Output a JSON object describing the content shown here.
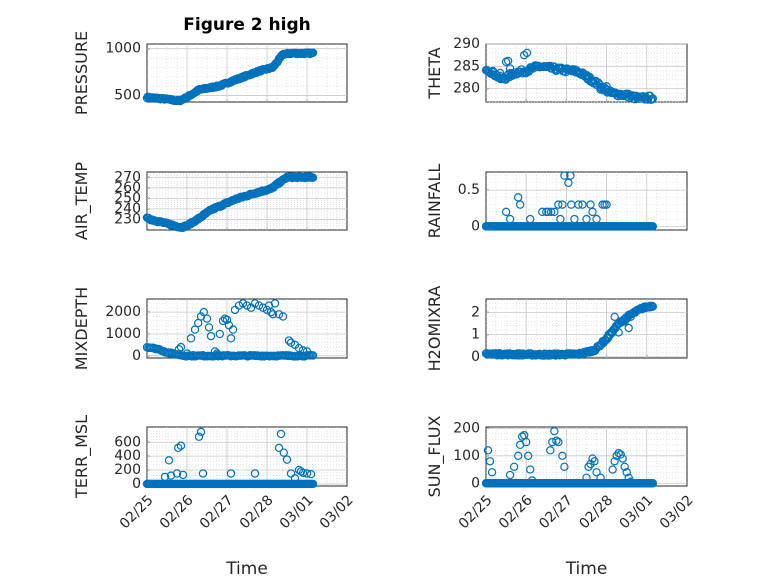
{
  "colors": {
    "marker": "#0072bd",
    "axis": "#262626",
    "grid": "#c8c8c8"
  },
  "chart_data": [
    {
      "type": "scatter",
      "title": "Figure 2 high",
      "xlabel": "",
      "ylabel": "PRESSURE",
      "xlim": [
        0,
        5
      ],
      "ylim": [
        430,
        1050
      ],
      "yticks": [
        500,
        1000
      ],
      "xticks": [
        0,
        1,
        2,
        3,
        4,
        5
      ],
      "xtick_labels": [],
      "series": [
        {
          "name": "PRESSURE",
          "type": "points",
          "x0": 0,
          "x1": 4.15,
          "n": 210,
          "keys": [
            [
              0,
              480
            ],
            [
              0.5,
              460
            ],
            [
              0.8,
              440
            ],
            [
              1.0,
              480
            ],
            [
              1.3,
              560
            ],
            [
              1.8,
              600
            ],
            [
              2.3,
              680
            ],
            [
              2.8,
              760
            ],
            [
              3.15,
              800
            ],
            [
              3.4,
              940
            ],
            [
              3.6,
              950
            ],
            [
              4.15,
              950
            ]
          ],
          "jitter": 8
        }
      ]
    },
    {
      "type": "scatter",
      "title": "",
      "xlabel": "",
      "ylabel": "THETA",
      "xlim": [
        0,
        5
      ],
      "ylim": [
        277,
        290
      ],
      "yticks": [
        280,
        285,
        290
      ],
      "xticks": [
        0,
        1,
        2,
        3,
        4,
        5
      ],
      "xtick_labels": [],
      "series": [
        {
          "name": "THETA",
          "type": "points",
          "x0": 0,
          "x1": 4.15,
          "n": 170,
          "keys": [
            [
              0,
              284.6
            ],
            [
              0.25,
              283.0
            ],
            [
              0.4,
              282.0
            ],
            [
              0.7,
              283.5
            ],
            [
              1.0,
              284.0
            ],
            [
              1.3,
              285.0
            ],
            [
              1.8,
              284.3
            ],
            [
              2.3,
              283.8
            ],
            [
              2.7,
              281.5
            ],
            [
              3.1,
              279.0
            ],
            [
              3.5,
              278.5
            ],
            [
              3.8,
              277.8
            ],
            [
              4.15,
              278.0
            ]
          ],
          "jitter": 0.5,
          "extra": [
            [
              0.35,
              283.5
            ],
            [
              0.5,
              286.0
            ],
            [
              0.55,
              286.2
            ],
            [
              0.6,
              284.5
            ],
            [
              0.95,
              287.5
            ],
            [
              1.02,
              288.0
            ],
            [
              2.55,
              282.7
            ],
            [
              2.85,
              279.8
            ],
            [
              3.0,
              280.5
            ]
          ]
        }
      ]
    },
    {
      "type": "scatter",
      "title": "",
      "xlabel": "",
      "ylabel": "AIR_TEMP",
      "xlim": [
        0,
        5
      ],
      "ylim": [
        220,
        275
      ],
      "yticks": [
        230,
        240,
        250,
        260,
        270
      ],
      "xticks": [
        0,
        1,
        2,
        3,
        4,
        5
      ],
      "xtick_labels": [],
      "series": [
        {
          "name": "AIR_TEMP",
          "type": "points",
          "x0": 0,
          "x1": 4.15,
          "n": 210,
          "keys": [
            [
              0,
              231
            ],
            [
              0.3,
              228
            ],
            [
              0.6,
              225
            ],
            [
              0.85,
              222.5
            ],
            [
              1.0,
              224
            ],
            [
              1.3,
              231
            ],
            [
              1.6,
              239
            ],
            [
              2.2,
              249
            ],
            [
              2.7,
              255
            ],
            [
              3.1,
              259
            ],
            [
              3.35,
              266
            ],
            [
              3.5,
              270
            ],
            [
              4.15,
              270
            ]
          ],
          "jitter": 0.8
        }
      ]
    },
    {
      "type": "scatter",
      "title": "",
      "xlabel": "",
      "ylabel": "RAINFALL",
      "xlim": [
        0,
        5
      ],
      "ylim": [
        -0.05,
        0.75
      ],
      "yticks": [
        0,
        0.5
      ],
      "xticks": [
        0,
        1,
        2,
        3,
        4,
        5
      ],
      "xtick_labels": [],
      "series": [
        {
          "name": "RAINFALL",
          "type": "points",
          "x0": 0,
          "x1": 4.15,
          "n": 180,
          "keys": [
            [
              0,
              0
            ],
            [
              4.15,
              0
            ]
          ],
          "jitter": 0,
          "extra": [
            [
              0.5,
              0.2
            ],
            [
              0.6,
              0.1
            ],
            [
              0.8,
              0.4
            ],
            [
              0.85,
              0.3
            ],
            [
              1.1,
              0.1
            ],
            [
              1.4,
              0.2
            ],
            [
              1.5,
              0.2
            ],
            [
              1.55,
              0.2
            ],
            [
              1.62,
              0.2
            ],
            [
              1.7,
              0.2
            ],
            [
              1.8,
              0.3
            ],
            [
              1.85,
              0.1
            ],
            [
              1.9,
              0.3
            ],
            [
              1.95,
              0.7
            ],
            [
              2.05,
              0.6
            ],
            [
              2.1,
              0.7
            ],
            [
              2.12,
              0.3
            ],
            [
              2.2,
              0.1
            ],
            [
              2.3,
              0.3
            ],
            [
              2.4,
              0.3
            ],
            [
              2.5,
              0.1
            ],
            [
              2.6,
              0.3
            ],
            [
              2.65,
              0.2
            ],
            [
              2.75,
              0.1
            ],
            [
              2.9,
              0.3
            ],
            [
              2.95,
              0.3
            ],
            [
              3.0,
              0.3
            ]
          ]
        }
      ]
    },
    {
      "type": "scatter",
      "title": "",
      "xlabel": "",
      "ylabel": "MIXDEPTH",
      "xlim": [
        0,
        5
      ],
      "ylim": [
        -100,
        2600
      ],
      "yticks": [
        0,
        1000,
        2000
      ],
      "xticks": [
        0,
        1,
        2,
        3,
        4,
        5
      ],
      "xtick_labels": [],
      "series": [
        {
          "name": "MIXDEPTH",
          "type": "points",
          "x0": 0,
          "x1": 4.15,
          "n": 120,
          "keys": [
            [
              0,
              400
            ],
            [
              0.3,
              300
            ],
            [
              0.5,
              150
            ],
            [
              0.7,
              80
            ],
            [
              0.95,
              0
            ],
            [
              4.15,
              0
            ]
          ],
          "jitter": 30,
          "extra": [
            [
              0.8,
              300
            ],
            [
              0.85,
              400
            ],
            [
              1.0,
              100
            ],
            [
              1.1,
              800
            ],
            [
              1.2,
              1200
            ],
            [
              1.28,
              1500
            ],
            [
              1.35,
              1800
            ],
            [
              1.42,
              2000
            ],
            [
              1.5,
              1700
            ],
            [
              1.55,
              1300
            ],
            [
              1.6,
              900
            ],
            [
              1.7,
              200
            ],
            [
              1.75,
              100
            ],
            [
              1.82,
              1000
            ],
            [
              1.9,
              1600
            ],
            [
              1.95,
              1700
            ],
            [
              2.0,
              1650
            ],
            [
              2.05,
              1400
            ],
            [
              2.1,
              800
            ],
            [
              2.15,
              1200
            ],
            [
              2.2,
              2100
            ],
            [
              2.3,
              2300
            ],
            [
              2.4,
              2400
            ],
            [
              2.5,
              2300
            ],
            [
              2.6,
              2200
            ],
            [
              2.7,
              2400
            ],
            [
              2.8,
              2300
            ],
            [
              2.9,
              2200
            ],
            [
              3.0,
              2100
            ],
            [
              3.05,
              2300
            ],
            [
              3.1,
              2000
            ],
            [
              3.15,
              1900
            ],
            [
              3.2,
              2400
            ],
            [
              3.3,
              1900
            ],
            [
              3.4,
              1800
            ],
            [
              3.55,
              700
            ],
            [
              3.6,
              600
            ],
            [
              3.7,
              500
            ],
            [
              3.8,
              350
            ],
            [
              3.9,
              250
            ],
            [
              4.0,
              200
            ]
          ]
        }
      ]
    },
    {
      "type": "scatter",
      "title": "",
      "xlabel": "",
      "ylabel": "H2OMIXRA",
      "xlim": [
        0,
        5
      ],
      "ylim": [
        -0.05,
        2.6
      ],
      "yticks": [
        0,
        1,
        2
      ],
      "xticks": [
        0,
        1,
        2,
        3,
        4,
        5
      ],
      "xtick_labels": [],
      "series": [
        {
          "name": "H2OMIXRA",
          "type": "points",
          "x0": 0,
          "x1": 4.15,
          "n": 200,
          "keys": [
            [
              0,
              0.15
            ],
            [
              0.3,
              0.12
            ],
            [
              1.5,
              0.1
            ],
            [
              2.3,
              0.12
            ],
            [
              2.7,
              0.3
            ],
            [
              3.0,
              0.8
            ],
            [
              3.3,
              1.5
            ],
            [
              3.6,
              1.9
            ],
            [
              3.9,
              2.2
            ],
            [
              4.15,
              2.3
            ]
          ],
          "jitter": 0.05,
          "extra": [
            [
              2.9,
              0.7
            ],
            [
              3.05,
              1.0
            ],
            [
              3.2,
              1.8
            ],
            [
              3.3,
              1.1
            ],
            [
              3.45,
              1.6
            ],
            [
              3.55,
              1.3
            ],
            [
              3.6,
              1.8
            ]
          ]
        }
      ]
    },
    {
      "type": "scatter",
      "title": "",
      "xlabel": "Time",
      "ylabel": "TERR_MSL",
      "xlim": [
        0,
        5
      ],
      "ylim": [
        -30,
        820
      ],
      "yticks": [
        0,
        200,
        400,
        600
      ],
      "xticks": [
        0,
        1,
        2,
        3,
        4,
        5
      ],
      "xtick_labels": [
        "02/25",
        "02/26",
        "02/27",
        "02/28",
        "03/01",
        "03/02"
      ],
      "series": [
        {
          "name": "TERR_MSL",
          "type": "points",
          "x0": 0,
          "x1": 4.15,
          "n": 170,
          "keys": [
            [
              0,
              0
            ],
            [
              4.15,
              0
            ]
          ],
          "jitter": 0,
          "extra": [
            [
              0.45,
              100
            ],
            [
              0.55,
              340
            ],
            [
              0.6,
              120
            ],
            [
              0.75,
              150
            ],
            [
              0.78,
              520
            ],
            [
              0.85,
              550
            ],
            [
              0.9,
              130
            ],
            [
              1.3,
              680
            ],
            [
              1.35,
              750
            ],
            [
              1.4,
              150
            ],
            [
              2.1,
              150
            ],
            [
              2.7,
              150
            ],
            [
              3.3,
              520
            ],
            [
              3.35,
              720
            ],
            [
              3.42,
              450
            ],
            [
              3.5,
              350
            ],
            [
              3.6,
              150
            ],
            [
              3.7,
              80
            ],
            [
              3.8,
              200
            ],
            [
              3.85,
              180
            ],
            [
              3.9,
              160
            ],
            [
              4.0,
              150
            ],
            [
              4.1,
              140
            ]
          ]
        }
      ]
    },
    {
      "type": "scatter",
      "title": "",
      "xlabel": "Time",
      "ylabel": "SUN_FLUX",
      "xlim": [
        0,
        5
      ],
      "ylim": [
        -10,
        205
      ],
      "yticks": [
        0,
        100,
        200
      ],
      "xticks": [
        0,
        1,
        2,
        3,
        4,
        5
      ],
      "xtick_labels": [
        "02/25",
        "02/26",
        "02/27",
        "02/28",
        "03/01",
        "03/02"
      ],
      "series": [
        {
          "name": "SUN_FLUX",
          "type": "points",
          "x0": 0,
          "x1": 4.15,
          "n": 170,
          "keys": [
            [
              0,
              0
            ],
            [
              4.15,
              0
            ]
          ],
          "jitter": 0,
          "extra": [
            [
              0.05,
              120
            ],
            [
              0.1,
              80
            ],
            [
              0.15,
              40
            ],
            [
              0.6,
              30
            ],
            [
              0.7,
              60
            ],
            [
              0.8,
              100
            ],
            [
              0.85,
              140
            ],
            [
              0.9,
              170
            ],
            [
              0.95,
              175
            ],
            [
              1.0,
              150
            ],
            [
              1.05,
              100
            ],
            [
              1.1,
              50
            ],
            [
              1.15,
              10
            ],
            [
              1.6,
              120
            ],
            [
              1.65,
              150
            ],
            [
              1.7,
              190
            ],
            [
              1.75,
              155
            ],
            [
              1.8,
              150
            ],
            [
              1.9,
              100
            ],
            [
              1.95,
              60
            ],
            [
              2.5,
              20
            ],
            [
              2.55,
              60
            ],
            [
              2.6,
              70
            ],
            [
              2.65,
              90
            ],
            [
              2.7,
              80
            ],
            [
              2.75,
              40
            ],
            [
              2.85,
              20
            ],
            [
              3.15,
              50
            ],
            [
              3.2,
              80
            ],
            [
              3.25,
              100
            ],
            [
              3.3,
              110
            ],
            [
              3.35,
              105
            ],
            [
              3.4,
              90
            ],
            [
              3.45,
              60
            ],
            [
              3.5,
              40
            ],
            [
              3.55,
              20
            ],
            [
              3.6,
              5
            ]
          ]
        }
      ]
    }
  ]
}
